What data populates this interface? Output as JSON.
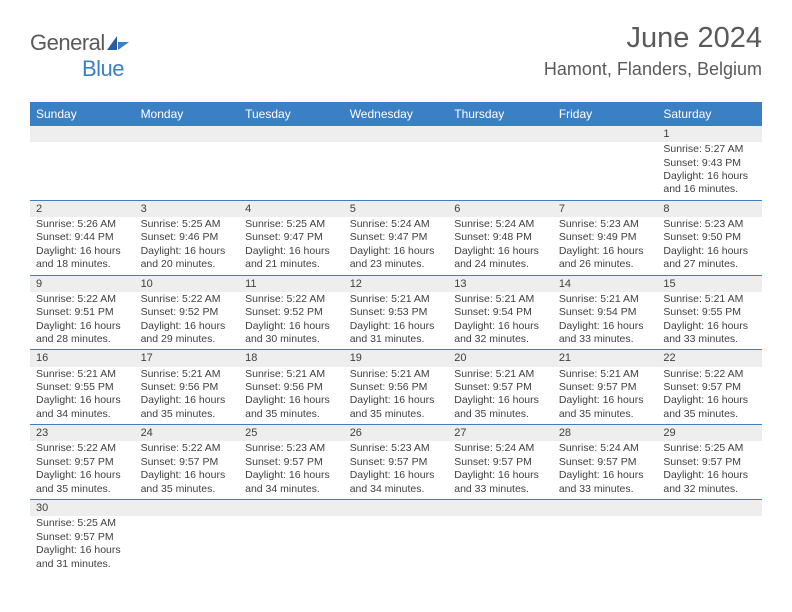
{
  "logo": {
    "text_general": "General",
    "text_blue": "Blue"
  },
  "title": {
    "month": "June 2024",
    "location": "Hamont, Flanders, Belgium"
  },
  "colors": {
    "header_bg": "#3b7fc4",
    "header_text": "#ffffff",
    "daynum_bg": "#eeeeee",
    "text": "#404040",
    "rule": "#3b7fc4",
    "page_bg": "#ffffff",
    "logo_gray": "#5a5a5a",
    "logo_blue": "#3b7fc4"
  },
  "weekdays": [
    "Sunday",
    "Monday",
    "Tuesday",
    "Wednesday",
    "Thursday",
    "Friday",
    "Saturday"
  ],
  "weeks": [
    [
      null,
      null,
      null,
      null,
      null,
      null,
      {
        "n": "1",
        "sr": "5:27 AM",
        "ss": "9:43 PM",
        "dl": "16 hours and 16 minutes."
      }
    ],
    [
      {
        "n": "2",
        "sr": "5:26 AM",
        "ss": "9:44 PM",
        "dl": "16 hours and 18 minutes."
      },
      {
        "n": "3",
        "sr": "5:25 AM",
        "ss": "9:46 PM",
        "dl": "16 hours and 20 minutes."
      },
      {
        "n": "4",
        "sr": "5:25 AM",
        "ss": "9:47 PM",
        "dl": "16 hours and 21 minutes."
      },
      {
        "n": "5",
        "sr": "5:24 AM",
        "ss": "9:47 PM",
        "dl": "16 hours and 23 minutes."
      },
      {
        "n": "6",
        "sr": "5:24 AM",
        "ss": "9:48 PM",
        "dl": "16 hours and 24 minutes."
      },
      {
        "n": "7",
        "sr": "5:23 AM",
        "ss": "9:49 PM",
        "dl": "16 hours and 26 minutes."
      },
      {
        "n": "8",
        "sr": "5:23 AM",
        "ss": "9:50 PM",
        "dl": "16 hours and 27 minutes."
      }
    ],
    [
      {
        "n": "9",
        "sr": "5:22 AM",
        "ss": "9:51 PM",
        "dl": "16 hours and 28 minutes."
      },
      {
        "n": "10",
        "sr": "5:22 AM",
        "ss": "9:52 PM",
        "dl": "16 hours and 29 minutes."
      },
      {
        "n": "11",
        "sr": "5:22 AM",
        "ss": "9:52 PM",
        "dl": "16 hours and 30 minutes."
      },
      {
        "n": "12",
        "sr": "5:21 AM",
        "ss": "9:53 PM",
        "dl": "16 hours and 31 minutes."
      },
      {
        "n": "13",
        "sr": "5:21 AM",
        "ss": "9:54 PM",
        "dl": "16 hours and 32 minutes."
      },
      {
        "n": "14",
        "sr": "5:21 AM",
        "ss": "9:54 PM",
        "dl": "16 hours and 33 minutes."
      },
      {
        "n": "15",
        "sr": "5:21 AM",
        "ss": "9:55 PM",
        "dl": "16 hours and 33 minutes."
      }
    ],
    [
      {
        "n": "16",
        "sr": "5:21 AM",
        "ss": "9:55 PM",
        "dl": "16 hours and 34 minutes."
      },
      {
        "n": "17",
        "sr": "5:21 AM",
        "ss": "9:56 PM",
        "dl": "16 hours and 35 minutes."
      },
      {
        "n": "18",
        "sr": "5:21 AM",
        "ss": "9:56 PM",
        "dl": "16 hours and 35 minutes."
      },
      {
        "n": "19",
        "sr": "5:21 AM",
        "ss": "9:56 PM",
        "dl": "16 hours and 35 minutes."
      },
      {
        "n": "20",
        "sr": "5:21 AM",
        "ss": "9:57 PM",
        "dl": "16 hours and 35 minutes."
      },
      {
        "n": "21",
        "sr": "5:21 AM",
        "ss": "9:57 PM",
        "dl": "16 hours and 35 minutes."
      },
      {
        "n": "22",
        "sr": "5:22 AM",
        "ss": "9:57 PM",
        "dl": "16 hours and 35 minutes."
      }
    ],
    [
      {
        "n": "23",
        "sr": "5:22 AM",
        "ss": "9:57 PM",
        "dl": "16 hours and 35 minutes."
      },
      {
        "n": "24",
        "sr": "5:22 AM",
        "ss": "9:57 PM",
        "dl": "16 hours and 35 minutes."
      },
      {
        "n": "25",
        "sr": "5:23 AM",
        "ss": "9:57 PM",
        "dl": "16 hours and 34 minutes."
      },
      {
        "n": "26",
        "sr": "5:23 AM",
        "ss": "9:57 PM",
        "dl": "16 hours and 34 minutes."
      },
      {
        "n": "27",
        "sr": "5:24 AM",
        "ss": "9:57 PM",
        "dl": "16 hours and 33 minutes."
      },
      {
        "n": "28",
        "sr": "5:24 AM",
        "ss": "9:57 PM",
        "dl": "16 hours and 33 minutes."
      },
      {
        "n": "29",
        "sr": "5:25 AM",
        "ss": "9:57 PM",
        "dl": "16 hours and 32 minutes."
      }
    ],
    [
      {
        "n": "30",
        "sr": "5:25 AM",
        "ss": "9:57 PM",
        "dl": "16 hours and 31 minutes."
      },
      null,
      null,
      null,
      null,
      null,
      null
    ]
  ],
  "labels": {
    "sunrise": "Sunrise:",
    "sunset": "Sunset:",
    "daylight": "Daylight:"
  }
}
